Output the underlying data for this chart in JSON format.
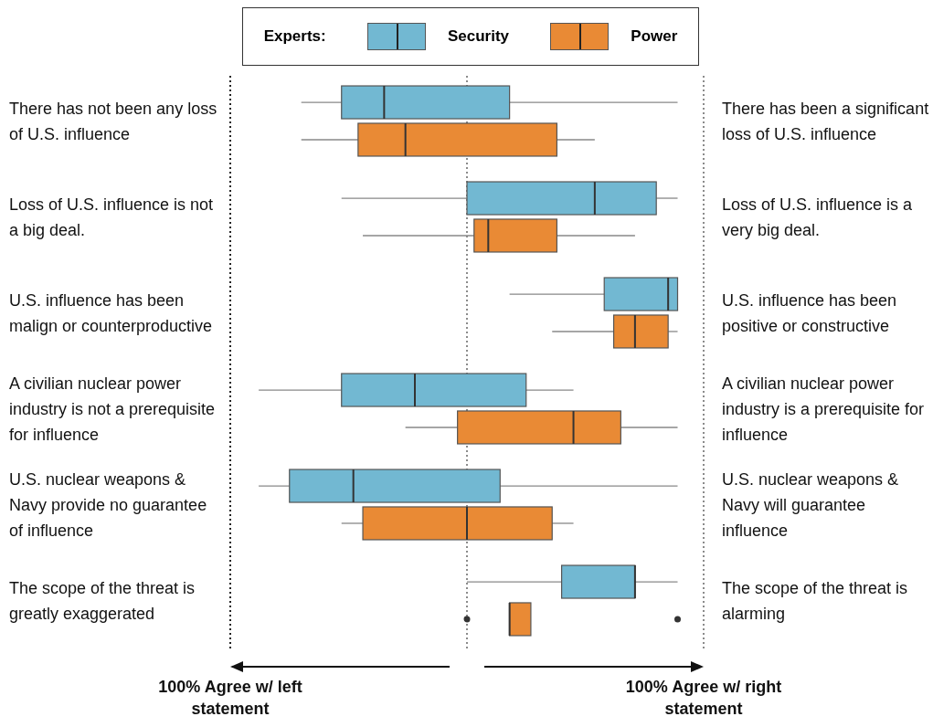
{
  "chart_data": {
    "type": "box",
    "orientation": "horizontal",
    "legend_title": "Experts:",
    "legend": "top",
    "categories": [
      "There has not been any loss of U.S. influence",
      "Loss of U.S. influence is not a big deal.",
      "U.S. influence has been malign or counterproductive",
      "A civilian nuclear power industry is not a prerequisite for influence",
      "U.S. nuclear weapons & Navy provide no guarantee of influence",
      "The scope of the threat is greatly exaggerated"
    ],
    "annotations": [
      "There has been a significant loss of U.S. influence",
      "Loss of U.S. influence is a very big deal.",
      "U.S. influence has been positive or constructive",
      "A civilian nuclear power industry is a prerequisite for influence",
      "U.S. nuclear weapons & Navy will guarantee influence",
      "The scope of the threat is alarming"
    ],
    "xlim": [
      -100,
      100
    ],
    "xticks": [
      {
        "value": -100,
        "label": "100% Agree w/ left statement"
      },
      {
        "value": 100,
        "label": "100% Agree w/ right statement"
      }
    ],
    "ref_lines": [
      {
        "axis": "x",
        "value": -100,
        "color": "#222222",
        "line_style": "dotted"
      },
      {
        "axis": "x",
        "value": 0,
        "color": "#666666",
        "line_style": "dotted"
      },
      {
        "axis": "x",
        "value": 100,
        "color": "#666666",
        "line_style": "dotted"
      }
    ],
    "series": [
      {
        "name": "Security",
        "color": "#72b8d2",
        "boxes": [
          {
            "low": -70,
            "q1": -53,
            "median": -35,
            "q3": 18,
            "high": 89
          },
          {
            "low": -53,
            "q1": 0,
            "median": 54,
            "q3": 80,
            "high": 89
          },
          {
            "low": 18,
            "q1": 58,
            "median": 85,
            "q3": 89,
            "high": 89
          },
          {
            "low": -88,
            "q1": -53,
            "median": -22,
            "q3": 25,
            "high": 45
          },
          {
            "low": -88,
            "q1": -75,
            "median": -48,
            "q3": 14,
            "high": 89
          },
          {
            "low": 0,
            "q1": 40,
            "median": 71,
            "q3": 71,
            "high": 89
          }
        ]
      },
      {
        "name": "Power",
        "color": "#e98a35",
        "boxes": [
          {
            "low": -70,
            "q1": -46,
            "median": -26,
            "q3": 38,
            "high": 54
          },
          {
            "low": -44,
            "q1": 3,
            "median": 9,
            "q3": 38,
            "high": 71
          },
          {
            "low": 36,
            "q1": 62,
            "median": 71,
            "q3": 85,
            "high": 89
          },
          {
            "low": -26,
            "q1": -4,
            "median": 45,
            "q3": 65,
            "high": 89
          },
          {
            "low": -53,
            "q1": -44,
            "median": 0,
            "q3": 36,
            "high": 45
          },
          {
            "low": 18,
            "q1": 18,
            "median": 18,
            "q3": 27,
            "high": 27,
            "outliers": [
              0,
              89
            ]
          }
        ]
      }
    ]
  }
}
